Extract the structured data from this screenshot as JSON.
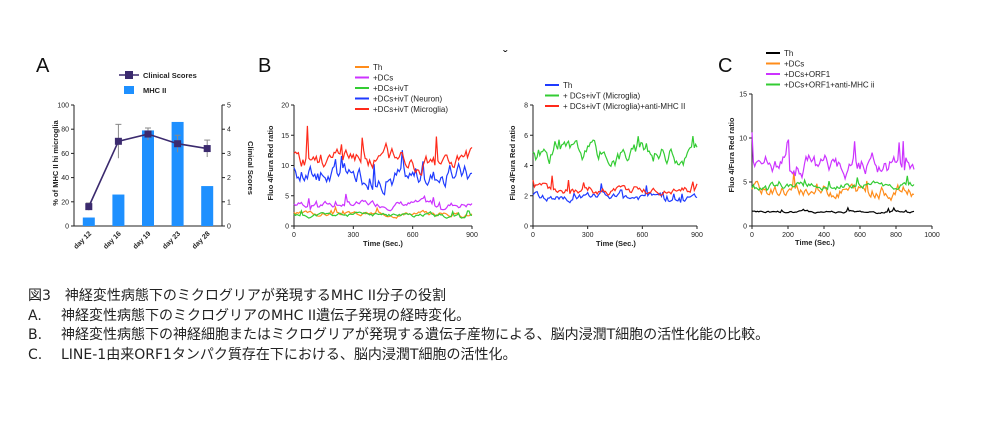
{
  "panels": {
    "A": "A",
    "B": "B",
    "C": "C",
    "mark": "ˇ"
  },
  "colors": {
    "clinical": "#3b2a6e",
    "mhc": "#1e90ff",
    "orange": "#ff8c1a",
    "magenta": "#cc33ff",
    "green": "#33cc33",
    "blue": "#1f3bff",
    "red": "#ff2a1a",
    "black": "#000000"
  },
  "chart_data": [
    {
      "id": "A",
      "type": "bar",
      "categories": [
        "day 12",
        "day 16",
        "day 19",
        "day 23",
        "day 28"
      ],
      "series": [
        {
          "name": "MHC II",
          "kind": "bar",
          "values": [
            7,
            26,
            79,
            86,
            33
          ]
        },
        {
          "name": "Clinical Scores",
          "kind": "line",
          "values": [
            0.8,
            3.5,
            3.8,
            3.4,
            3.2
          ],
          "errors": [
            0.15,
            0.7,
            0.25,
            0.35,
            0.35
          ]
        }
      ],
      "ylabel": "% of MHC II hi microglia",
      "y2label": "Clinical Scores",
      "ylim": [
        0,
        100
      ],
      "y2lim": [
        0,
        5
      ],
      "yticks": [
        0,
        20,
        40,
        60,
        80,
        100
      ],
      "y2ticks": [
        0,
        1,
        2,
        3,
        4,
        5
      ],
      "legend": "top"
    },
    {
      "id": "B1",
      "type": "line",
      "xlabel": "Time (Sec.)",
      "ylabel": "Fluo 4/Fura Red ratio",
      "xlim": [
        0,
        900
      ],
      "ylim": [
        0,
        20
      ],
      "xticks": [
        0,
        300,
        600,
        900
      ],
      "yticks": [
        0,
        5,
        10,
        15,
        20
      ],
      "series": [
        {
          "name": "Th",
          "color": "orange",
          "base": 2.0,
          "amp": 0.8,
          "seed": 3
        },
        {
          "name": "+DCs",
          "color": "magenta",
          "base": 3.6,
          "amp": 1.2,
          "seed": 7
        },
        {
          "name": "+DCs+ivT",
          "color": "green",
          "base": 1.8,
          "amp": 0.8,
          "seed": 11
        },
        {
          "name": "+DCs+ivT (Neuron)",
          "color": "blue",
          "base": 8.5,
          "amp": 4.0,
          "seed": 17
        },
        {
          "name": "+DCs+ivT (Microglia)",
          "color": "red",
          "base": 11.0,
          "amp": 3.5,
          "seed": 23
        }
      ]
    },
    {
      "id": "B2",
      "type": "line",
      "xlabel": "Time (Sec.)",
      "ylabel": "Fluo 4/Fura Red ratio",
      "xlim": [
        0,
        900
      ],
      "ylim": [
        0,
        8
      ],
      "xticks": [
        0,
        300,
        600,
        900
      ],
      "yticks": [
        0,
        2,
        4,
        6,
        8
      ],
      "series": [
        {
          "name": "Th",
          "color": "blue",
          "base": 1.9,
          "amp": 0.5,
          "seed": 29
        },
        {
          "name": "+ DCs+ivT (Microglia)",
          "color": "green",
          "base": 4.8,
          "amp": 1.3,
          "seed": 31
        },
        {
          "name": "+ DCs+ivT (Microglia)+anti-MHC II",
          "color": "red",
          "base": 2.4,
          "amp": 0.6,
          "seed": 37
        }
      ]
    },
    {
      "id": "C",
      "type": "line",
      "xlabel": "Time (Sec.)",
      "ylabel": "Fluo 4/Fura Red ratio",
      "xlim": [
        0,
        1000
      ],
      "ylim": [
        0,
        15
      ],
      "xticks": [
        0,
        200,
        400,
        600,
        800,
        1000
      ],
      "yticks": [
        0,
        5,
        10,
        15
      ],
      "series": [
        {
          "name": "Th",
          "color": "black",
          "base": 1.6,
          "amp": 0.3,
          "seed": 41
        },
        {
          "name": "+DCs",
          "color": "orange",
          "base": 4.0,
          "amp": 1.6,
          "seed": 43
        },
        {
          "name": "+DCs+ORF1",
          "color": "magenta",
          "base": 7.0,
          "amp": 2.4,
          "seed": 47
        },
        {
          "name": "+DCs+ORF1+anti-MHC ii",
          "color": "green",
          "base": 4.6,
          "amp": 0.8,
          "seed": 53
        }
      ]
    }
  ],
  "caption": {
    "title": "図3　神経変性病態下のミクログリアが発現するMHC II分子の役割",
    "items": [
      {
        "letter": "A.",
        "text": "神経変性病態下のミクログリアのMHC II遺伝子発現の経時変化。"
      },
      {
        "letter": "B.",
        "text": "神経変性病態下の神経細胞またはミクログリアが発現する遺伝子産物による、脳内浸潤T細胞の活性化能の比較。"
      },
      {
        "letter": "C.",
        "text": "LINE-1由来ORF1タンパク質存在下における、脳内浸潤T細胞の活性化。"
      }
    ]
  }
}
